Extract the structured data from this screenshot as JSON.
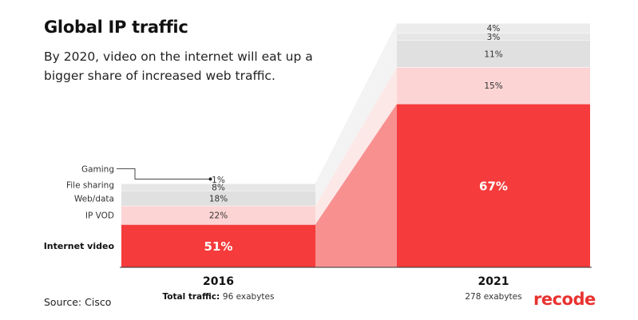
{
  "header": {
    "title": "Global IP traffic",
    "subtitle": "By 2020, video on the internet will eat up a bigger share of increased web traffic."
  },
  "footer": {
    "source": "Source: Cisco",
    "logo": "recode"
  },
  "colors": {
    "internet_video": "#f53b3b",
    "ip_vod": "#fcd4d4",
    "web_data": "#e0e0e0",
    "file_sharing": "#e6e6e6",
    "gaming": "#ececec",
    "connector_video": "#f89090",
    "connector_vod": "#fde6e6",
    "connector_other": "#f2f2f2",
    "brand": "#e8322f"
  },
  "chart_data": {
    "type": "bar",
    "categories": [
      "2016",
      "2021"
    ],
    "category_labels": [
      "2016",
      "2021"
    ],
    "totals": [
      96,
      278
    ],
    "total_labels": [
      "96 exabytes",
      "278 exabytes"
    ],
    "total_prefix": "Total traffic:",
    "series": [
      {
        "name": "Internet video",
        "values": [
          51,
          67
        ],
        "labels": [
          "51%",
          "67%"
        ]
      },
      {
        "name": "IP VOD",
        "values": [
          22,
          15
        ],
        "labels": [
          "22%",
          "15%"
        ]
      },
      {
        "name": "Web/data",
        "values": [
          18,
          11
        ],
        "labels": [
          "18%",
          "11%"
        ]
      },
      {
        "name": "File sharing",
        "values": [
          8,
          3
        ],
        "labels": [
          "8%",
          "3%"
        ]
      },
      {
        "name": "Gaming",
        "values": [
          1,
          4
        ],
        "labels": [
          "1%",
          "4%"
        ]
      }
    ],
    "xlabel": "",
    "ylabel": "",
    "grid": false,
    "legend": "left"
  }
}
